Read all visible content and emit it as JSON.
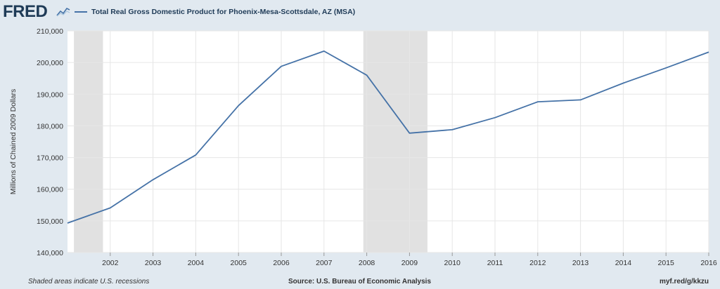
{
  "brand": {
    "name": "FRED",
    "icon": "chart-line-icon"
  },
  "footer": {
    "note": "Shaded areas indicate U.S. recessions",
    "source": "Source: U.S. Bureau of Economic Analysis",
    "link": "myf.red/g/kkzu"
  },
  "colors": {
    "line": "#4572a7",
    "recession": "#e1e1e1",
    "background": "#e1e9f0",
    "plot": "#ffffff"
  },
  "chart_data": {
    "type": "line",
    "title": "",
    "legend": [
      "Total Real Gross Domestic Product for Phoenix-Mesa-Scottsdale, AZ (MSA)"
    ],
    "ylabel": "Millions of Chained 2009 Dollars",
    "xlabel": "",
    "ylim": [
      140000,
      210000
    ],
    "xlim": [
      2001,
      2016
    ],
    "yticks": [
      140000,
      150000,
      160000,
      170000,
      180000,
      190000,
      200000,
      210000
    ],
    "ytick_labels": [
      "140,000",
      "150,000",
      "160,000",
      "170,000",
      "180,000",
      "190,000",
      "200,000",
      "210,000"
    ],
    "xticks": [
      "2002",
      "2003",
      "2004",
      "2005",
      "2006",
      "2007",
      "2008",
      "2009",
      "2010",
      "2011",
      "2012",
      "2013",
      "2014",
      "2015",
      "2016"
    ],
    "recessions": [
      [
        2001.15,
        2001.83
      ],
      [
        2007.92,
        2009.42
      ]
    ],
    "series": [
      {
        "name": "Total Real Gross Domestic Product for Phoenix-Mesa-Scottsdale, AZ (MSA)",
        "x": [
          2001,
          2002,
          2003,
          2004,
          2005,
          2006,
          2007,
          2008,
          2009,
          2010,
          2011,
          2012,
          2013,
          2014,
          2015,
          2016
        ],
        "y": [
          149300,
          154100,
          163000,
          170800,
          186400,
          198800,
          203600,
          196000,
          177700,
          178800,
          182600,
          187600,
          188200,
          193500,
          198300,
          203300
        ]
      }
    ],
    "grid": true
  }
}
